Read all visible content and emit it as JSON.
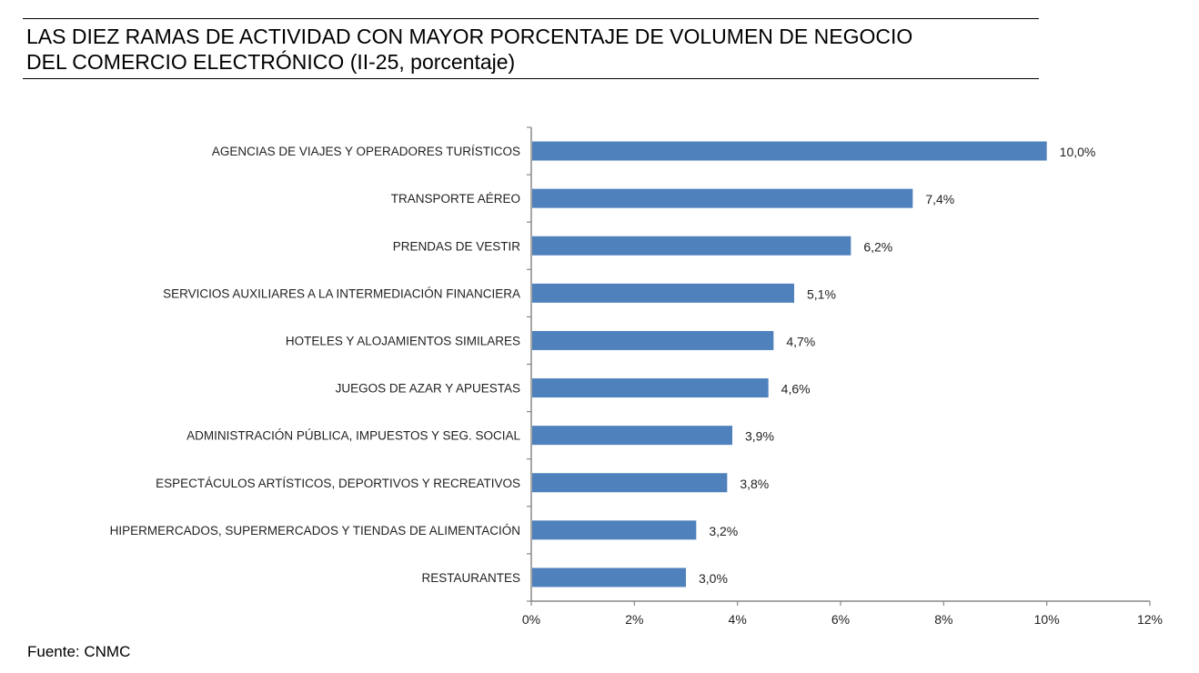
{
  "chart_data": {
    "type": "bar",
    "orientation": "horizontal",
    "title_lines": [
      "LAS DIEZ RAMAS DE ACTIVIDAD CON MAYOR PORCENTAJE DE VOLUMEN DE NEGOCIO",
      "DEL COMERCIO ELECTRÓNICO (II-25, porcentaje)"
    ],
    "categories": [
      "AGENCIAS DE VIAJES Y OPERADORES TURÍSTICOS",
      "TRANSPORTE AÉREO",
      "PRENDAS DE VESTIR",
      "SERVICIOS AUXILIARES A LA INTERMEDIACIÓN FINANCIERA",
      "HOTELES  Y ALOJAMIENTOS SIMILARES",
      "JUEGOS DE AZAR Y APUESTAS",
      "ADMINISTRACIÓN PÚBLICA, IMPUESTOS Y SEG. SOCIAL",
      "ESPECTÁCULOS ARTÍSTICOS, DEPORTIVOS Y RECREATIVOS",
      "HIPERMERCADOS, SUPERMERCADOS Y TIENDAS DE ALIMENTACIÓN",
      "RESTAURANTES"
    ],
    "values": [
      10.0,
      7.4,
      6.2,
      5.1,
      4.7,
      4.6,
      3.9,
      3.8,
      3.2,
      3.0
    ],
    "value_labels": [
      "10,0%",
      "7,4%",
      "6,2%",
      "5,1%",
      "4,7%",
      "4,6%",
      "3,9%",
      "3,8%",
      "3,2%",
      "3,0%"
    ],
    "xlim": [
      0,
      12
    ],
    "xticks": [
      0,
      2,
      4,
      6,
      8,
      10,
      12
    ],
    "xtick_labels": [
      "0%",
      "2%",
      "4%",
      "6%",
      "8%",
      "10%",
      "12%"
    ],
    "xlabel": "",
    "ylabel": "",
    "grid": false,
    "bar_color": "#4f81bd",
    "source": "Fuente: CNMC"
  }
}
